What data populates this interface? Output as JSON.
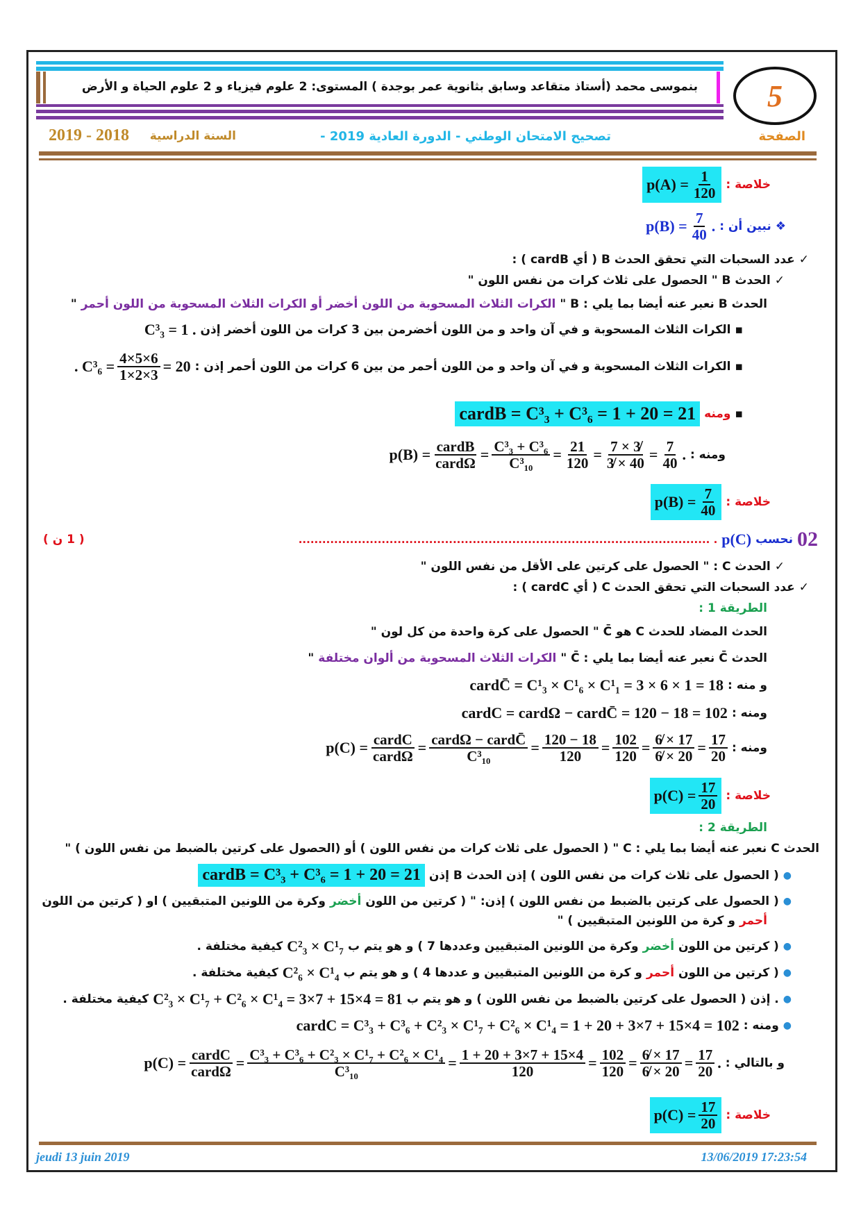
{
  "header": {
    "author_line": "بنموسى محمد (أستاذ متقاعد وسابق بثانوية عمر بوجدة )  المستوى: 2 علوم فيزياء و  2 علوم الحياة و الأرض",
    "page_label": "الصفحة",
    "exam": "تصحيح الامتحان الوطني  - الدورة العادية 2019 -",
    "year_label": "السنة الدراسية",
    "year": "2019 - 2018",
    "logo": "5"
  },
  "colors": {
    "accent_cyan": "#22e6f5",
    "red": "#e0101a",
    "purple": "#7a2da0",
    "blue": "#1a2fd0",
    "brown": "#9b6a3c"
  },
  "lines": {
    "summary": "خلاصة :",
    "pA": "p(A) =",
    "pA_n": "1",
    "pA_d": "120",
    "show": "نبين أن :",
    "pB": "p(B) =",
    "pB_n": "7",
    "pB_d": "40",
    "dot": ".",
    "count_B": "عدد السحبات التي تحقق الحدث  B  ( أي  cardB ) :",
    "event_B": "الحدث  B \" الحصول على ثلاث كرات من نفس اللون \"",
    "express_B": "الحدث  B  نعبر عنه أيضا بما يلي :  B  \"",
    "express_B_q": "الكرات الثلاث المسحوبة من اللون أخضر أو الكرات الثلاث المسحوبة من اللون أحمر",
    "quote": "\"",
    "green3": "الكرات الثلاث المسحوبة و في آن واحد و من اللون أخضرمن بين 3 كرات من اللون أخضر إذن",
    "green3_m": "C³₃ = 1 .",
    "red3": "الكرات الثلاث المسحوبة و في آن واحد و من اللون أحمر من بين 6 كرات من اللون أحمر إذن :",
    "red3_m1": "20 =",
    "red3_n": "6×5×4",
    "red3_d": "3×2×1",
    "red3_m2": "= C³₆ .",
    "hence": "ومنه",
    "cardB": "cardB = C³₃ + C³₆ = 1 + 20 = 21",
    "hence_colon": "ومنه :",
    "pB_calc_1": "p(B) =",
    "pB_c1n": "cardB",
    "pB_c1d": "cardΩ",
    "pB_c2n": "C³₃ + C³₆",
    "pB_c2d": "C³₁₀",
    "pB_c3n": "21",
    "pB_c3d": "120",
    "pB_c4n": "7 × 3̸",
    "pB_c4d": "3̸ × 40",
    "pB_c5n": "7",
    "pB_c5d": "40",
    "q_num": "02",
    "compute": "نحسب",
    "pC": "p(C)",
    "dots": ". ........................................................................................................",
    "points": "( 1 ن )",
    "event_C": "الحدث  C : \" الحصول على كرتين على الأقل من نفس اللون \"",
    "count_C": "عدد السحبات التي تحقق الحدث  C  ( أي  cardC ) :",
    "method1": "الطريقة 1 :",
    "complement": "الحدث المضاد للحدث C هو  C̄  \" الحصول على كرة واحدة من كل لون \"",
    "express_Cbar": "الحدث  C̄  نعبر عنه أيضا بما يلي :  C̄  \"",
    "express_Cbar_q": "الكرات الثلاث المسحوبة من ألوان مختلفة",
    "and_hence": "و منه :",
    "cardCbar": "cardC̄ = C¹₃ × C¹₆ × C¹₁ = 3 × 6 × 1 = 18",
    "cardC1": "cardC = cardΩ − cardC̄ = 120 − 18 = 102",
    "pC_1n": "cardC",
    "pC_1d": "cardΩ",
    "pC_2n": "cardΩ − cardC̄",
    "pC_2d": "C³₁₀",
    "pC_3n": "120 − 18",
    "pC_3d": "120",
    "pC_4n": "102",
    "pC_4d": "120",
    "pC_5n": "6̸ × 17",
    "pC_5d": "6̸ × 20",
    "pC_6n": "17",
    "pC_6d": "20",
    "pC_eq": "p(C) =",
    "method2": "الطريقة 2 :",
    "express_C": "الحدث  C  نعبر عنه أيضا بما يلي :  C  \" ( الحصول على ثلاث كرات من نفس اللون ) أو (الحصول على كرتين بالضبط من نفس اللون ) \"",
    "b1": "( الحصول على ثلاث كرات من نفس اللون ) إذن الحدث  B إذن",
    "b2a": "( الحصول على كرتين بالضبط من نفس اللون ) إذن: \" ( كرتين من اللون",
    "green": "أخضر",
    "b2b": "وكرة من اللونين المتبقيين ) او ( كرتين من اللون",
    "red_w": "أحمر",
    "b2c": "و كرة من اللونين المتبقيين ) \"",
    "b3a": "( كرتين من اللون",
    "b3b": "وكرة من اللونين المتبقيين وعددها 7 ) و هو يتم ب",
    "b3m": "C²₃ × C¹₇",
    "b3c": "كيفية مختلفة .",
    "b4a": "( كرتين من اللون",
    "b4b": "و كرة من اللونين المتبقيين و عددها 4 ) و هو يتم ب",
    "b4m": "C²₆ × C¹₄",
    "b4c": "كيفية مختلفة .",
    "b5a": ". إذن ( الحصول على كرتين بالضبط من نفس اللون ) و هو يتم ب",
    "b5m": "C²₃ × C¹₇ + C²₆ × C¹₄ = 3×7 + 15×4 = 81",
    "b5c": "كيفية مختلفة .",
    "b6m": "cardC = C³₃ + C³₆ + C²₃ × C¹₇ + C²₆ × C¹₄ = 1 + 20 + 3×7 + 15×4 = 102",
    "thus": "و بالتالي :",
    "pC2_2n": "C³₃ + C³₆ + C²₃ × C¹₇ + C²₆ × C¹₄",
    "pC2_3n": "1 + 20 + 3×7 + 15×4"
  },
  "footer": {
    "left": "jeudi 13 juin 2019",
    "right": "13/06/2019 17:23:54"
  }
}
